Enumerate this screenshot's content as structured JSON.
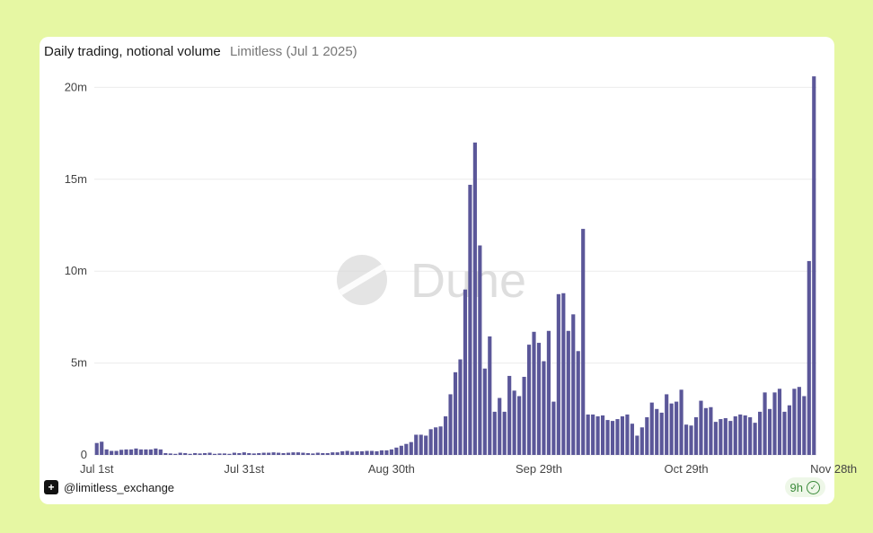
{
  "header": {
    "title": "Daily trading, notional volume",
    "subtitle": "Limitless (Jul 1 2025)"
  },
  "watermark": "Dune",
  "footer": {
    "handle": "@limitless_exchange",
    "badge_text": "9h",
    "badge_icon": "check-circle-icon",
    "logo_icon": "limitless-logo-icon"
  },
  "colors": {
    "bar": "#5b5799",
    "background": "#e6f7a3",
    "grid": "#ececec"
  },
  "chart_data": {
    "type": "bar",
    "title": "Daily trading, notional volume",
    "xlabel": "",
    "ylabel": "",
    "ylim": [
      0,
      20.8
    ],
    "y_unit": "m",
    "yticks": [
      {
        "value": 0,
        "label": "0"
      },
      {
        "value": 5,
        "label": "5m"
      },
      {
        "value": 10,
        "label": "10m"
      },
      {
        "value": 15,
        "label": "15m"
      },
      {
        "value": 20,
        "label": "20m"
      }
    ],
    "xticks": [
      {
        "index": 0,
        "label": "Jul 1st"
      },
      {
        "index": 30,
        "label": "Jul 31st"
      },
      {
        "index": 60,
        "label": "Aug 30th"
      },
      {
        "index": 90,
        "label": "Sep 29th"
      },
      {
        "index": 120,
        "label": "Oct 29th"
      },
      {
        "index": 150,
        "label": "Nov 28th"
      }
    ],
    "grid": true,
    "legend": "none",
    "start_label": "Jul 1st",
    "values": [
      0.65,
      0.72,
      0.3,
      0.22,
      0.22,
      0.28,
      0.3,
      0.3,
      0.35,
      0.3,
      0.3,
      0.3,
      0.35,
      0.3,
      0.1,
      0.08,
      0.06,
      0.12,
      0.1,
      0.06,
      0.1,
      0.08,
      0.1,
      0.12,
      0.06,
      0.08,
      0.08,
      0.06,
      0.12,
      0.1,
      0.14,
      0.1,
      0.08,
      0.1,
      0.12,
      0.12,
      0.14,
      0.12,
      0.1,
      0.12,
      0.14,
      0.14,
      0.12,
      0.1,
      0.08,
      0.12,
      0.1,
      0.1,
      0.14,
      0.14,
      0.2,
      0.22,
      0.18,
      0.2,
      0.2,
      0.22,
      0.22,
      0.2,
      0.25,
      0.25,
      0.3,
      0.4,
      0.5,
      0.6,
      0.7,
      1.1,
      1.1,
      1.05,
      1.4,
      1.5,
      1.55,
      2.1,
      3.3,
      4.5,
      5.2,
      9.0,
      14.7,
      17.0,
      11.4,
      4.7,
      6.45,
      2.35,
      3.1,
      2.35,
      4.3,
      3.5,
      3.2,
      4.25,
      6.0,
      6.7,
      6.1,
      5.1,
      6.75,
      2.9,
      8.75,
      8.8,
      6.75,
      7.65,
      5.65,
      12.3,
      2.2,
      2.2,
      2.1,
      2.15,
      1.9,
      1.85,
      1.95,
      2.1,
      2.2,
      1.7,
      1.05,
      1.5,
      2.05,
      2.85,
      2.5,
      2.3,
      3.3,
      2.8,
      2.9,
      3.55,
      1.65,
      1.6,
      2.05,
      2.95,
      2.55,
      2.6,
      1.8,
      1.95,
      2.0,
      1.85,
      2.1,
      2.2,
      2.15,
      2.05,
      1.75,
      2.35,
      3.4,
      2.5,
      3.4,
      3.6,
      2.35,
      2.7,
      3.6,
      3.7,
      3.2,
      10.55,
      20.6
    ]
  }
}
